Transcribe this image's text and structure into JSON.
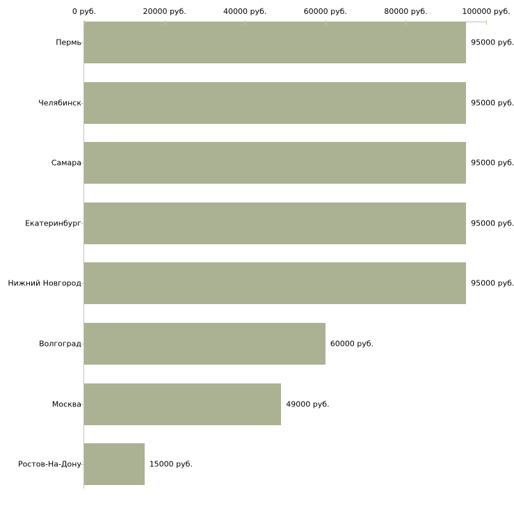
{
  "chart_data": {
    "type": "bar",
    "orientation": "horizontal",
    "title": "",
    "xlabel": "",
    "ylabel": "",
    "unit": "руб.",
    "categories": [
      "Пермь",
      "Челябинск",
      "Самара",
      "Екатеринбург",
      "Нижний Новгород",
      "Волгоград",
      "Москва",
      "Ростов-На-Дону"
    ],
    "values": [
      95000,
      95000,
      95000,
      95000,
      95000,
      60000,
      49000,
      15000
    ],
    "value_labels": [
      "95000 руб.",
      "95000 руб.",
      "95000 руб.",
      "95000 руб.",
      "95000 руб.",
      "60000 руб.",
      "49000 руб.",
      "15000 руб."
    ],
    "x_ticks": [
      0,
      20000,
      40000,
      60000,
      80000,
      100000
    ],
    "x_tick_labels": [
      "0 руб.",
      "20000 руб.",
      "40000 руб.",
      "60000 руб.",
      "80000 руб.",
      "100000 руб."
    ],
    "xlim": [
      0,
      100000
    ],
    "axis_position": "top",
    "grid": false,
    "legend": false,
    "colors": {
      "bar": "#abb294",
      "axis_line": "#c0c0c0",
      "tick": "#c8c8a2",
      "text": "#000000",
      "background": "#ffffff"
    }
  }
}
